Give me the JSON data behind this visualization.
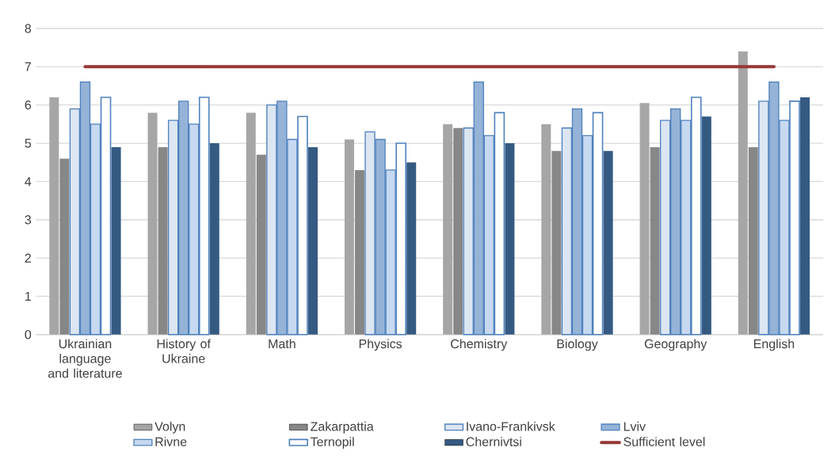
{
  "chart_data": {
    "type": "bar",
    "categories": [
      "Ukrainian language and literature",
      "History of Ukraine",
      "Math",
      "Physics",
      "Chemistry",
      "Biology",
      "Geography",
      "English"
    ],
    "series": [
      {
        "name": "Volyn",
        "color": "#a6a6a6",
        "values": [
          6.2,
          5.8,
          5.8,
          5.1,
          5.5,
          5.5,
          6.05,
          7.4
        ]
      },
      {
        "name": "Zakarpattia",
        "color": "#878787",
        "values": [
          4.6,
          4.9,
          4.7,
          4.3,
          5.4,
          4.8,
          4.9,
          4.9
        ]
      },
      {
        "name": "Ivano-Frankivsk",
        "color": "#4f81bd",
        "values": [
          5.9,
          5.6,
          6.0,
          5.3,
          5.4,
          5.4,
          5.6,
          6.1
        ]
      },
      {
        "name": "Lviv",
        "color": "#4f81bd",
        "values": [
          6.6,
          6.1,
          6.1,
          5.1,
          6.6,
          5.9,
          5.9,
          6.6
        ]
      },
      {
        "name": "Rivne",
        "color": "#4f81bd",
        "values": [
          5.5,
          5.5,
          5.1,
          4.3,
          5.2,
          5.2,
          5.6,
          5.6
        ]
      },
      {
        "name": "Ternopil",
        "color": "#4f81bd",
        "values": [
          6.2,
          6.2,
          5.7,
          5.0,
          5.8,
          5.8,
          6.2,
          6.1
        ]
      },
      {
        "name": "Chernivtsi",
        "color": "#355a82",
        "values": [
          4.9,
          5.0,
          4.9,
          4.5,
          5.0,
          4.8,
          5.7,
          6.2
        ]
      },
      {
        "name": "Sufficient level",
        "type": "line",
        "color": "#953735",
        "values": [
          7,
          7,
          7,
          7,
          7,
          7,
          7,
          7
        ]
      }
    ],
    "ylim": [
      0,
      8
    ],
    "yticks": [
      0,
      1,
      2,
      3,
      4,
      5,
      6,
      7,
      8
    ],
    "grid": "y",
    "legend": "bottom"
  }
}
